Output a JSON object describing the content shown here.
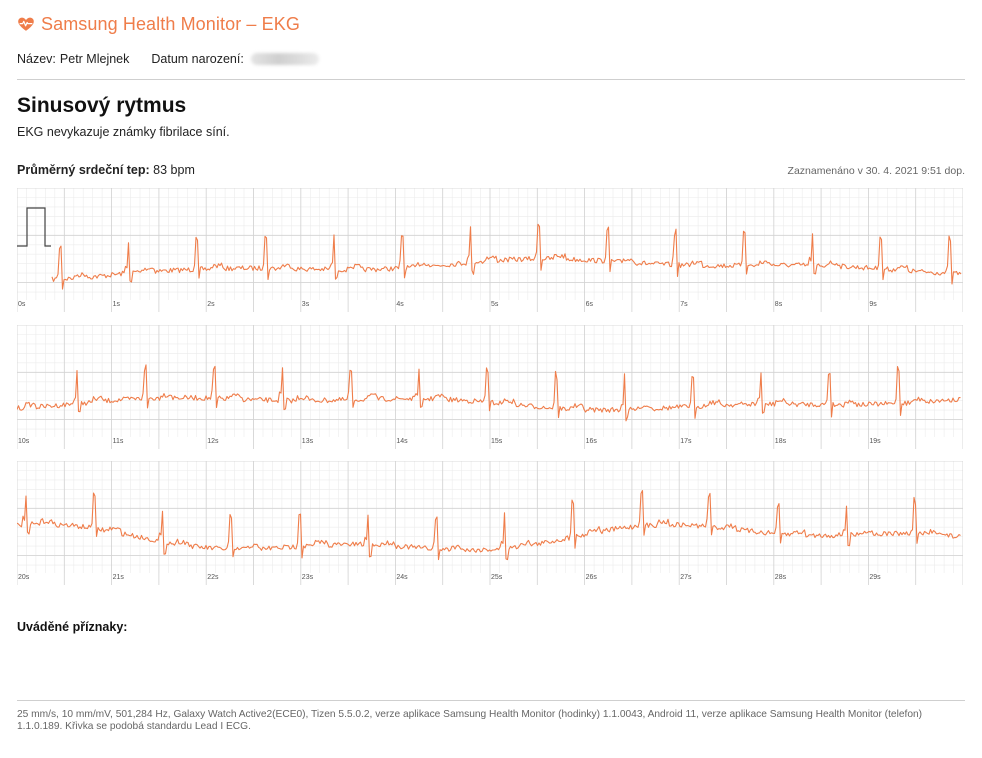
{
  "app": {
    "title": "Samsung Health Monitor – EKG",
    "logo_icon": "heart-pulse-icon",
    "accent_color": "#ef7d4a"
  },
  "patient": {
    "name_label": "Název:",
    "name_value": "Petr Mlejnek",
    "birth_label": "Datum narození:",
    "birth_value_redacted": true
  },
  "result": {
    "diagnosis": "Sinusový rytmus",
    "description": "EKG nevykazuje známky fibrilace síní."
  },
  "heart_rate": {
    "label": "Průměrný srdeční tep:",
    "value": "83 bpm"
  },
  "recorded": "Zaznamenáno v 30. 4. 2021 9:51 dop.",
  "strips": [
    {
      "ticks": [
        "0s",
        "1s",
        "2s",
        "3s",
        "4s",
        "5s",
        "6s",
        "7s",
        "8s",
        "9s"
      ]
    },
    {
      "ticks": [
        "10s",
        "11s",
        "12s",
        "13s",
        "14s",
        "15s",
        "16s",
        "17s",
        "18s",
        "19s"
      ]
    },
    {
      "ticks": [
        "20s",
        "21s",
        "22s",
        "23s",
        "24s",
        "25s",
        "26s",
        "27s",
        "28s",
        "29s"
      ]
    }
  ],
  "ecg_style": {
    "trace_color": "#ef7d4a",
    "grid_minor_color": "#ececec",
    "grid_major_color": "#d2d2d2"
  },
  "symptoms": {
    "label": "Uváděné příznaky:"
  },
  "footer": {
    "text": "25 mm/s, 10 mm/mV, 501,284 Hz, Galaxy Watch Active2(ECE0), Tizen 5.5.0.2, verze aplikace Samsung Health Monitor (hodinky) 1.1.0043, Android 11, verze aplikace Samsung Health Monitor (telefon) 1.1.0.189. Křivka se podobá standardu Lead I ECG."
  }
}
